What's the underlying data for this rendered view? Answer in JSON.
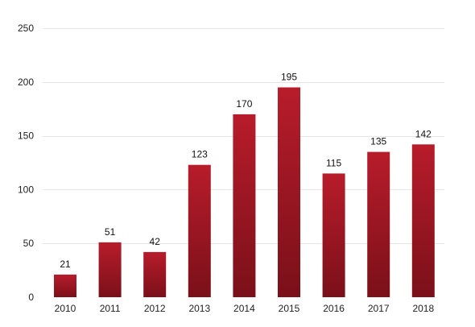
{
  "chart_data": {
    "type": "bar",
    "categories": [
      "2010",
      "2011",
      "2012",
      "2013",
      "2014",
      "2015",
      "2016",
      "2017",
      "2018"
    ],
    "values": [
      21,
      51,
      42,
      123,
      170,
      195,
      115,
      135,
      142
    ],
    "data_labels": [
      "21",
      "51",
      "42",
      "123",
      "170",
      "195",
      "115",
      "135",
      "142"
    ],
    "ylim": [
      0,
      250
    ],
    "yticks": [
      0,
      50,
      100,
      150,
      200,
      250
    ],
    "ytick_labels": [
      "0",
      "50",
      "100",
      "150",
      "200",
      "250"
    ],
    "grid": true,
    "legend": "none",
    "colors": {
      "bar_top": "#b81c2b",
      "bar_bottom": "#7a1019",
      "grid": "#e6e6e6"
    }
  }
}
